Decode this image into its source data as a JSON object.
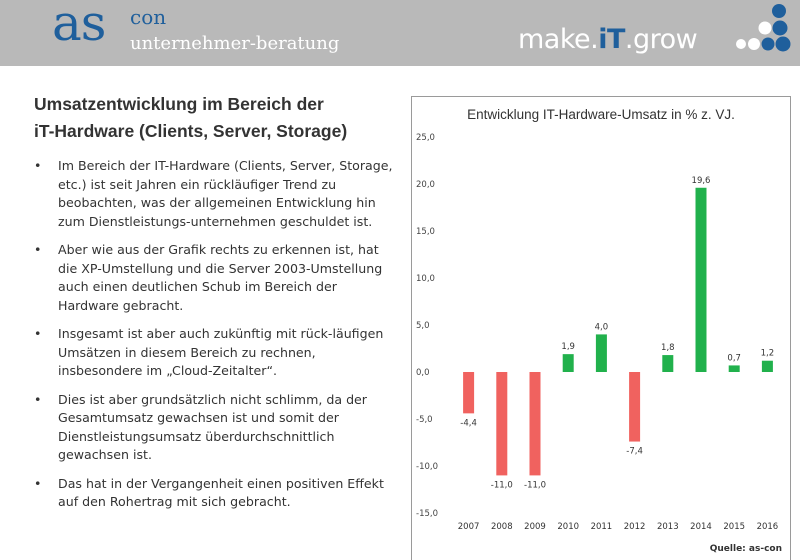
{
  "header": {
    "logo_main": "as",
    "logo_sup": "con",
    "logo_sub": "unternehmer-beratung",
    "slogan_a": "make.",
    "slogan_b": "iT",
    "slogan_c": ".grow"
  },
  "content": {
    "title_line1": "Umsatzentwicklung im Bereich der",
    "title_line2": "iT-Hardware (Clients, Server, Storage)",
    "bullets": [
      "Im Bereich der IT-Hardware (Clients, Server, Storage, etc.) ist seit Jahren ein rückläufiger Trend zu beobachten, was der allgemeinen Entwicklung hin zum Dienstleistungs-unternehmen geschuldet ist.",
      "Aber wie aus der Grafik rechts zu erkennen ist, hat die XP-Umstellung und die Server 2003-Umstellung auch einen deutlichen Schub im Bereich der Hardware gebracht.",
      "Insgesamt ist aber auch zukünftig mit rück-läufigen Umsätzen in diesem Bereich zu rechnen, insbesondere im „Cloud-Zeitalter“.",
      "Dies ist aber grundsätzlich nicht schlimm, da der Gesamtumsatz gewachsen ist und somit der Dienstleistungsumsatz überdurchschnittlich gewachsen ist.",
      "Das hat in der Vergangenheit einen positiven Effekt auf den Rohertrag mit sich gebracht."
    ],
    "bullet_symbol": "•"
  },
  "source_note": "Quelle: as-con",
  "colors": {
    "brand_blue": "#1f5f9c",
    "positive": "#21b14c",
    "negative": "#f0625f",
    "header_gray": "#b9b9b9"
  },
  "chart_data": {
    "type": "bar",
    "title": "Entwicklung IT-Hardware-Umsatz in % z. VJ.",
    "categories": [
      "2007",
      "2008",
      "2009",
      "2010",
      "2011",
      "2012",
      "2013",
      "2014",
      "2015",
      "2016"
    ],
    "values": [
      -4.4,
      -11.0,
      -11.0,
      1.9,
      4.0,
      -7.4,
      1.8,
      19.6,
      0.7,
      1.2
    ],
    "value_labels": [
      "-4,4",
      "-11,0",
      "-11,0",
      "1,9",
      "4,0",
      "-7,4",
      "1,8",
      "19,6",
      "0,7",
      "1,2"
    ],
    "yticks": [
      25,
      20,
      15,
      10,
      5,
      0,
      -5,
      -10,
      -15
    ],
    "ytick_labels": [
      "25,0",
      "20,0",
      "15,0",
      "10,0",
      "5,0",
      "0,0",
      "-5,0",
      "-10,0",
      "-15,0"
    ],
    "ylim": [
      -15,
      25
    ],
    "xlabel": "",
    "ylabel": "",
    "grid": false,
    "legend": "none"
  }
}
